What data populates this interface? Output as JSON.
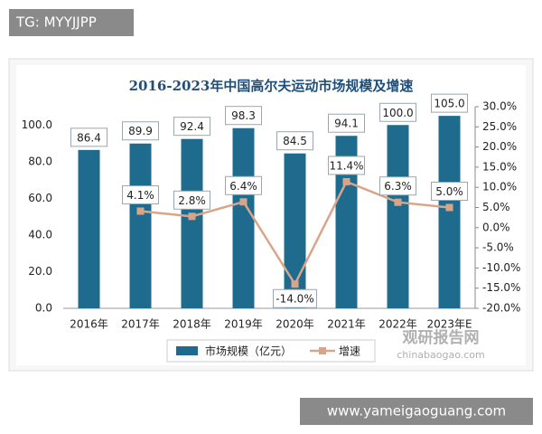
{
  "overlay": {
    "top_label": "TG: MYYJJPP",
    "bottom_label": "www.yameigaoguang.com"
  },
  "watermark": {
    "name": "观研报告网",
    "url": "chinabaogao.com"
  },
  "chart_data": {
    "type": "bar",
    "title": "2016-2023年中国高尔夫运动市场规模及增速",
    "categories": [
      "2016年",
      "2017年",
      "2018年",
      "2019年",
      "2020年",
      "2021年",
      "2022年",
      "2023年E"
    ],
    "series": [
      {
        "name": "市场规模（亿元）",
        "type": "bar",
        "color": "#1f6b8e",
        "values": [
          86.4,
          89.9,
          92.4,
          98.3,
          84.5,
          94.1,
          100,
          105
        ],
        "value_labels": [
          "86.4",
          "89.9",
          "92.4",
          "98.3",
          "84.5",
          "94.1",
          "100.0",
          "105.0"
        ]
      },
      {
        "name": "增速",
        "type": "line",
        "axis": "y2",
        "color": "#d9a58a",
        "values": [
          null,
          4.1,
          2.8,
          6.4,
          -14,
          11.4,
          6.3,
          5
        ],
        "value_labels": [
          null,
          "4.1%",
          "2.8%",
          "6.4%",
          "-14.0%",
          "11.4%",
          "6.3%",
          "5.0%"
        ]
      }
    ],
    "ylim": [
      0,
      110
    ],
    "yticks": [
      {
        "value": 0,
        "label": "0.0"
      },
      {
        "value": 20,
        "label": "20.0"
      },
      {
        "value": 40,
        "label": "40.0"
      },
      {
        "value": 60,
        "label": "60.0"
      },
      {
        "value": 80,
        "label": "80.0"
      },
      {
        "value": 100,
        "label": "100.0"
      }
    ],
    "y2lim": [
      -20,
      30
    ],
    "y2ticks": [
      {
        "value": -20,
        "label": "-20.0%"
      },
      {
        "value": -15,
        "label": "-15.0%"
      },
      {
        "value": -10,
        "label": "-10.0%"
      },
      {
        "value": -5,
        "label": "-5.0%"
      },
      {
        "value": 0,
        "label": "0.0%"
      },
      {
        "value": 5,
        "label": "5.0%"
      },
      {
        "value": 10,
        "label": "10.0%"
      },
      {
        "value": 15,
        "label": "15.0%"
      },
      {
        "value": 20,
        "label": "20.0%"
      },
      {
        "value": 25,
        "label": "25.0%"
      },
      {
        "value": 30,
        "label": "30.0%"
      }
    ],
    "legend": "bottom"
  }
}
